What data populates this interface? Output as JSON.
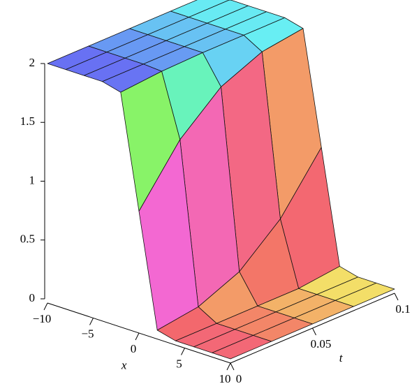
{
  "chart_data": {
    "type": "surface",
    "xlabel": "x",
    "ylabel": "t",
    "x": [
      -10,
      -8,
      -6,
      -4,
      -2,
      0,
      2,
      4,
      6,
      8,
      10
    ],
    "t": [
      0,
      0.025,
      0.05,
      0.075,
      0.1
    ],
    "z": [
      [
        2,
        2,
        2,
        2,
        1.96,
        1,
        0.04,
        0,
        0,
        0,
        0
      ],
      [
        2,
        2,
        2,
        2,
        1.99,
        1.46,
        0.09,
        0,
        0,
        0,
        0
      ],
      [
        2,
        2,
        2,
        2,
        2,
        1.76,
        0.24,
        0,
        0,
        0,
        0
      ],
      [
        2,
        2,
        2,
        2,
        2,
        1.91,
        0.54,
        0,
        0,
        0,
        0
      ],
      [
        2,
        2,
        2,
        2,
        2,
        1.96,
        1,
        0.04,
        0,
        0,
        0
      ]
    ],
    "xlim": [
      -10,
      10
    ],
    "tlim": [
      0,
      0.1
    ],
    "zlim": [
      0,
      2
    ],
    "xticks": [
      {
        "value": -10,
        "label": "−10"
      },
      {
        "value": -5,
        "label": "−5"
      },
      0,
      5,
      10
    ],
    "tticks": [
      0,
      0.05,
      0.1
    ],
    "zticks": [
      0,
      0.5,
      1,
      1.5,
      2
    ]
  }
}
